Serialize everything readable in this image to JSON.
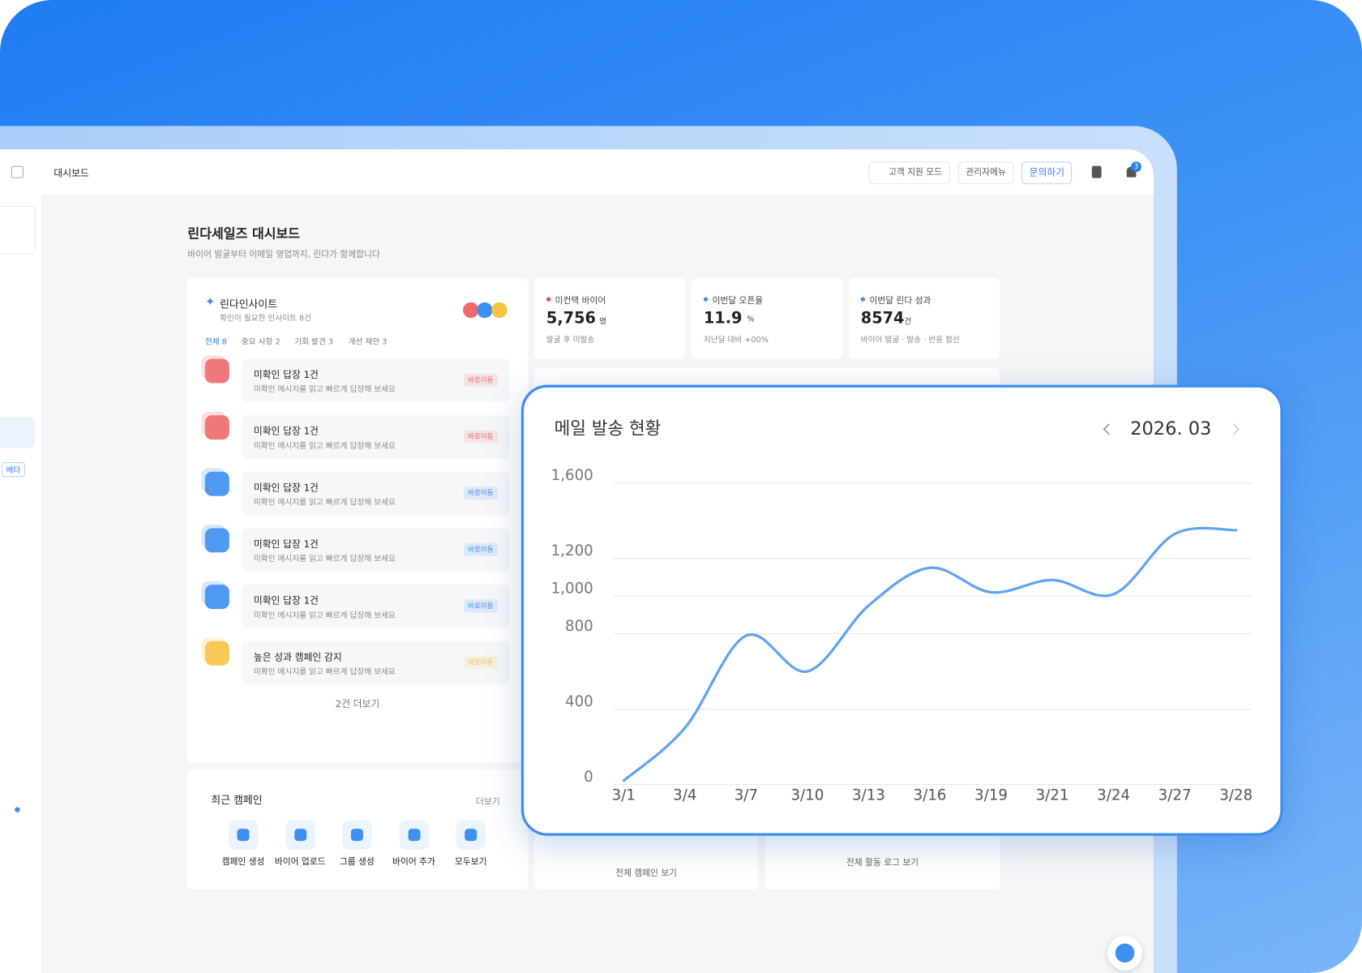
{
  "topbar": {
    "title": "대시보드",
    "buttons": [
      "고객 지원 모드",
      "관리자메뉴",
      "문의하기"
    ],
    "notification_count": "3"
  },
  "sidebar": {
    "badge": "베타"
  },
  "header": {
    "title": "린다세일즈 대시보드",
    "subtitle": "바이어 발굴부터 이메일 영업까지, 린다가 함께합니다"
  },
  "insights": {
    "title": "린다인사이트",
    "subtitle": "확인이 필요한 인사이트 8건",
    "tabs": [
      "전체 8",
      "중요 사항 2",
      "기회 발견 3",
      "개선 제안 3"
    ],
    "items": [
      {
        "title": "미확인 답장 1건",
        "description": "미확인 메시지를 읽고 빠르게 답장해 보세요",
        "action": "바로이동",
        "color": "#f06a6a"
      },
      {
        "title": "미확인 답장 1건",
        "description": "미확인 메시지를 읽고 빠르게 답장해 보세요",
        "action": "바로이동",
        "color": "#f06a6a"
      },
      {
        "title": "미확인 답장 1건",
        "description": "미확인 메시지를 읽고 빠르게 답장해 보세요",
        "action": "바로이동",
        "color": "#3d8ff0"
      },
      {
        "title": "미확인 답장 1건",
        "description": "미확인 메시지를 읽고 빠르게 답장해 보세요",
        "action": "바로이동",
        "color": "#3d8ff0"
      },
      {
        "title": "미확인 답장 1건",
        "description": "미확인 메시지를 읽고 빠르게 답장해 보세요",
        "action": "바로이동",
        "color": "#3d8ff0"
      },
      {
        "title": "높은 성과 캠페인 감지",
        "description": "미확인 메시지를 읽고 빠르게 답장해 보세요",
        "action": "바로이동",
        "color": "#f7c343"
      }
    ],
    "more": "2건 더보기"
  },
  "stats": [
    {
      "label": "미컨택 바이어",
      "value": "5,756",
      "unit": "명",
      "note": "발굴 후 미발송",
      "color": "#f04d4d"
    },
    {
      "label": "이번달 오픈율",
      "value": "11.9",
      "unit": "%",
      "note": "지난달 대비 +00%",
      "color": "#3d8ff0"
    },
    {
      "label": "이번달 린다 성과",
      "value": "8574",
      "unit": "건",
      "note": "바이어 발굴 · 발송 · 반응 합산",
      "color": "#3d8ff0"
    }
  ],
  "campaigns": {
    "title": "최근 캠페인",
    "more": "더보기",
    "actions": [
      "캠페인 생성",
      "바이어 업로드",
      "그룹 생성",
      "바이어 추가",
      "모두보기"
    ]
  },
  "links": [
    "전체 캠페인 보기",
    "전체 활동 로그 보기"
  ],
  "chart_data": {
    "type": "line",
    "title": "메일 발송 현황",
    "period": "2026. 03",
    "categories": [
      "3/1",
      "3/4",
      "3/7",
      "3/10",
      "3/13",
      "3/16",
      "3/19",
      "3/21",
      "3/24",
      "3/27",
      "3/28"
    ],
    "values": [
      20,
      300,
      790,
      600,
      950,
      1150,
      1020,
      1085,
      1010,
      1330,
      1350
    ],
    "color": "#5ea4f3",
    "ylim": [
      0,
      1600
    ],
    "yticks": [
      0,
      400,
      800,
      {
        "value": 1000,
        "label": "1,000"
      },
      {
        "value": 1200,
        "label": "1,200"
      },
      {
        "value": 1600,
        "label": "1,600"
      }
    ],
    "grid": true
  }
}
